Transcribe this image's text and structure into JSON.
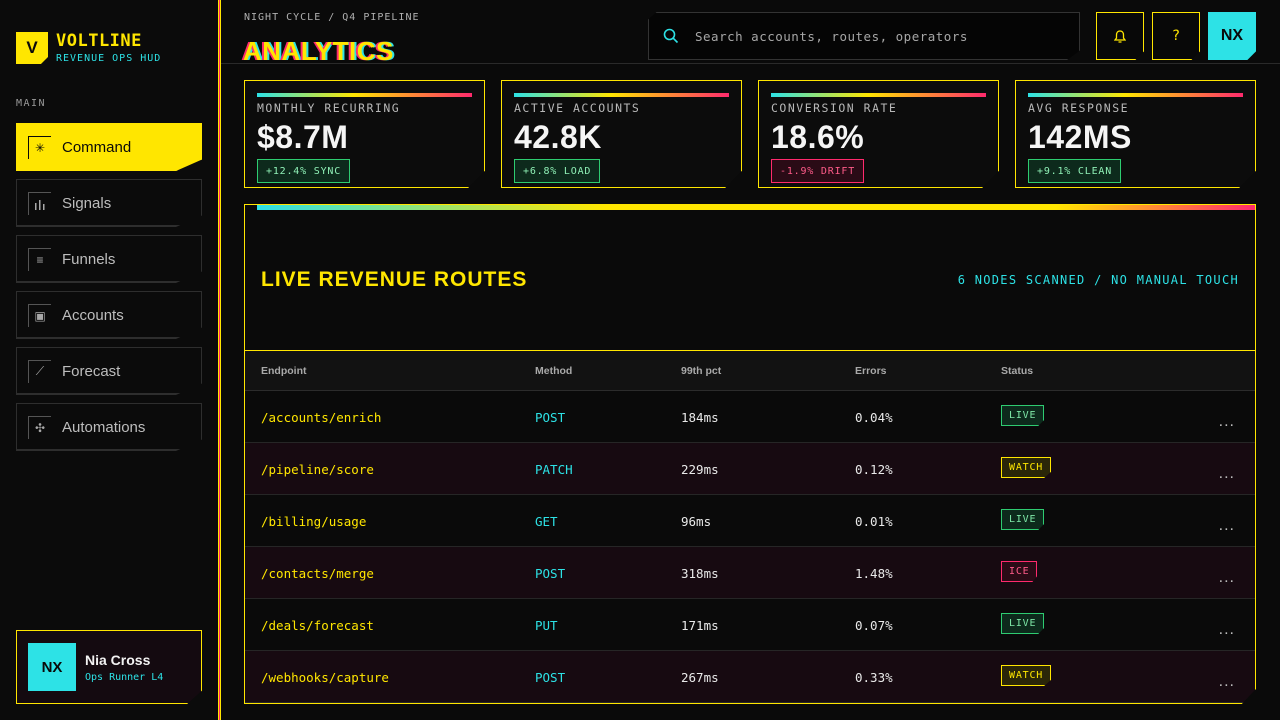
{
  "brand": {
    "mark": "V",
    "name": "VOLTLINE",
    "subtitle": "REVENUE OPS HUD"
  },
  "sidebar": {
    "section_label": "MAIN",
    "items": [
      {
        "label": "Command",
        "icon": "✳"
      },
      {
        "label": "Signals",
        "icon": "┆"
      },
      {
        "label": "Funnels",
        "icon": "≡"
      },
      {
        "label": "Accounts",
        "icon": "▣"
      },
      {
        "label": "Forecast",
        "icon": "⟋"
      },
      {
        "label": "Automations",
        "icon": "✣"
      }
    ],
    "user": {
      "initials": "NX",
      "name": "Nia Cross",
      "role": "Ops Runner L4"
    }
  },
  "header": {
    "breadcrumb": "NIGHT CYCLE / Q4 PIPELINE",
    "title": "ANALYTICS",
    "search_placeholder": "Search accounts, routes, operators",
    "bell_icon": "🔔",
    "help_label": "?",
    "avatar_initials": "NX"
  },
  "kpis": [
    {
      "label": "MONTHLY RECURRING",
      "value": "$8.7M",
      "delta": "+12.4% SYNC",
      "trend": "up"
    },
    {
      "label": "ACTIVE ACCOUNTS",
      "value": "42.8K",
      "delta": "+6.8% LOAD",
      "trend": "up"
    },
    {
      "label": "CONVERSION RATE",
      "value": "18.6%",
      "delta": "-1.9% DRIFT",
      "trend": "down"
    },
    {
      "label": "AVG RESPONSE",
      "value": "142MS",
      "delta": "+9.1% CLEAN",
      "trend": "up"
    }
  ],
  "routes": {
    "title": "LIVE REVENUE ROUTES",
    "meta": "6 NODES SCANNED / NO MANUAL TOUCH",
    "columns": [
      "Endpoint",
      "Method",
      "99th pct",
      "Errors",
      "Status"
    ],
    "rows": [
      {
        "endpoint": "/accounts/enrich",
        "method": "POST",
        "p99": "184ms",
        "errors": "0.04%",
        "status": "LIVE"
      },
      {
        "endpoint": "/pipeline/score",
        "method": "PATCH",
        "p99": "229ms",
        "errors": "0.12%",
        "status": "WATCH"
      },
      {
        "endpoint": "/billing/usage",
        "method": "GET",
        "p99": "96ms",
        "errors": "0.01%",
        "status": "LIVE"
      },
      {
        "endpoint": "/contacts/merge",
        "method": "POST",
        "p99": "318ms",
        "errors": "1.48%",
        "status": "ICE"
      },
      {
        "endpoint": "/deals/forecast",
        "method": "PUT",
        "p99": "171ms",
        "errors": "0.07%",
        "status": "LIVE"
      },
      {
        "endpoint": "/webhooks/capture",
        "method": "POST",
        "p99": "267ms",
        "errors": "0.33%",
        "status": "WATCH"
      }
    ],
    "row_action": "..."
  },
  "colors": {
    "accent": "#ffe600",
    "cyan": "#2de2e6",
    "magenta": "#ff2a6d",
    "green": "#2ecc71",
    "background": "#0a0a0a"
  }
}
